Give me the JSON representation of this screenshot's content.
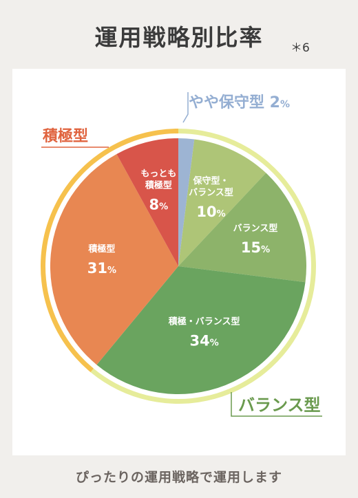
{
  "page": {
    "title": "運用戦略別比率",
    "note": "＊6",
    "footer": "ぴったりの運用戦略で運用します"
  },
  "chart_data": {
    "type": "pie",
    "title": "運用戦略別比率",
    "slices": [
      {
        "label": "やや保守型",
        "value": 2,
        "value_text": "2",
        "color": "#9db4d3"
      },
      {
        "label": "保守型・バランス型",
        "value": 10,
        "value_text": "10",
        "color": "#aec577"
      },
      {
        "label": "バランス型",
        "value": 15,
        "value_text": "15",
        "color": "#8db36a"
      },
      {
        "label": "積極・バランス型",
        "value": 34,
        "value_text": "34",
        "color": "#6aa45f"
      },
      {
        "label": "積極型",
        "value": 31,
        "value_text": "31",
        "color": "#e88752"
      },
      {
        "label": "もっとも積極型",
        "value": 8,
        "value_text": "8",
        "color": "#d8554a"
      }
    ],
    "unit": "%",
    "group_labels": [
      {
        "label": "やや保守型",
        "value_text": "2",
        "unit": "%",
        "color": "#94aed2"
      },
      {
        "label": "積極型",
        "color": "#e0633e"
      },
      {
        "label": "バランス型",
        "color": "#6a9a4e"
      }
    ],
    "ring_colors": {
      "conservative": "#e6ec9a",
      "aggressive": "#f6c14d"
    }
  }
}
